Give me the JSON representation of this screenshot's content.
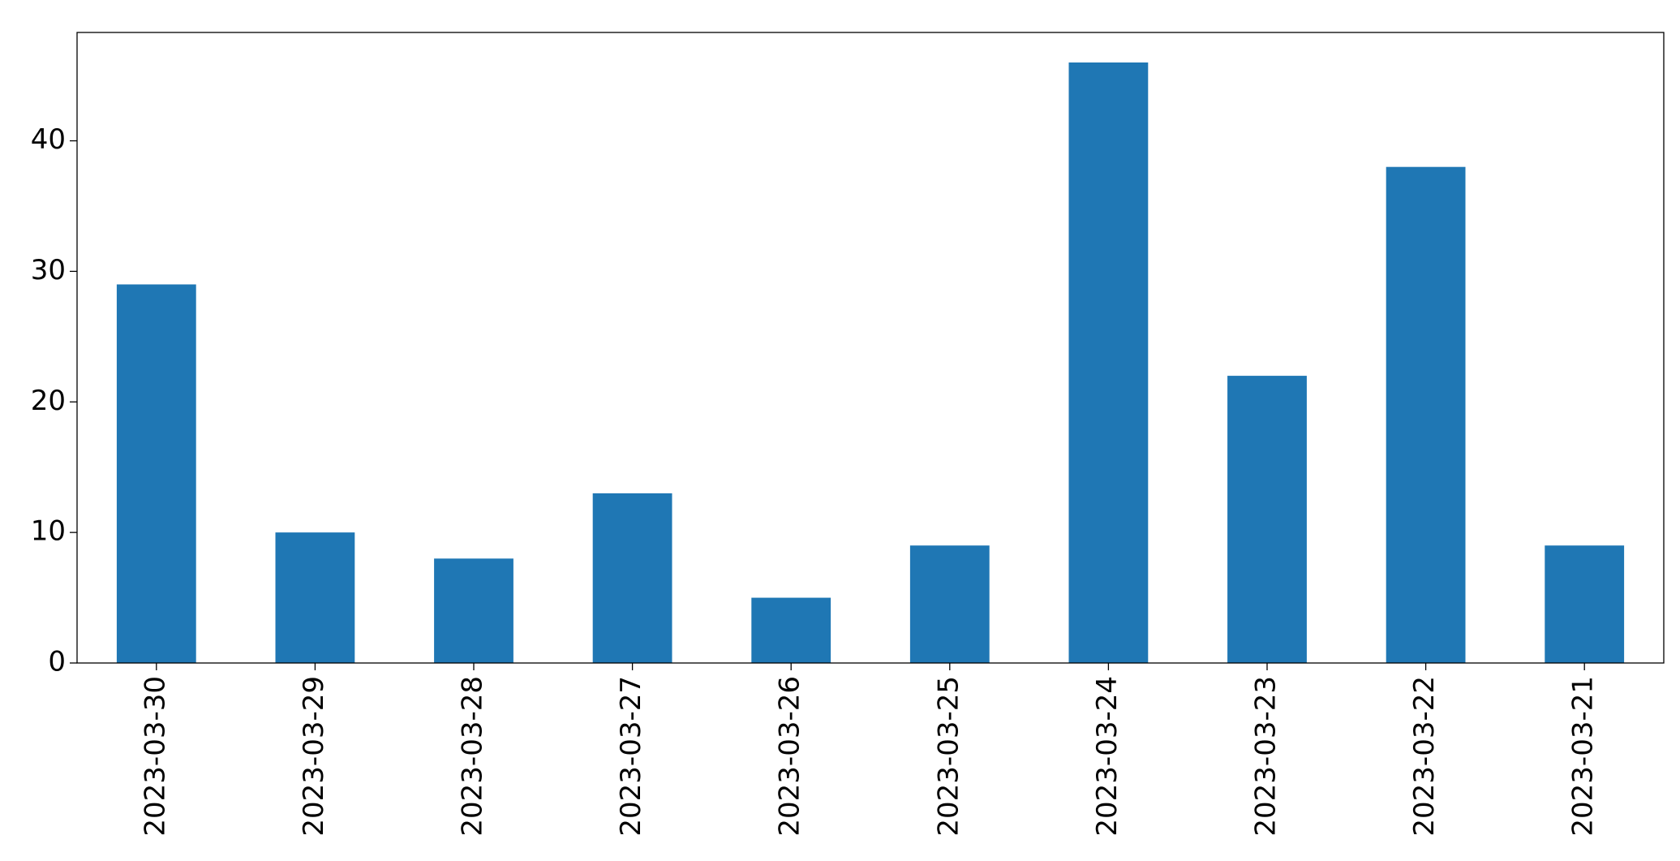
{
  "chart_data": {
    "type": "bar",
    "categories": [
      "2023-03-30",
      "2023-03-29",
      "2023-03-28",
      "2023-03-27",
      "2023-03-26",
      "2023-03-25",
      "2023-03-24",
      "2023-03-23",
      "2023-03-22",
      "2023-03-21"
    ],
    "values": [
      29,
      10,
      8,
      13,
      5,
      9,
      46,
      22,
      38,
      9
    ],
    "color": "#1f77b4",
    "ylim": [
      0,
      48.3
    ],
    "yticks": [
      0,
      10,
      20,
      30,
      40
    ],
    "grid": false
  }
}
